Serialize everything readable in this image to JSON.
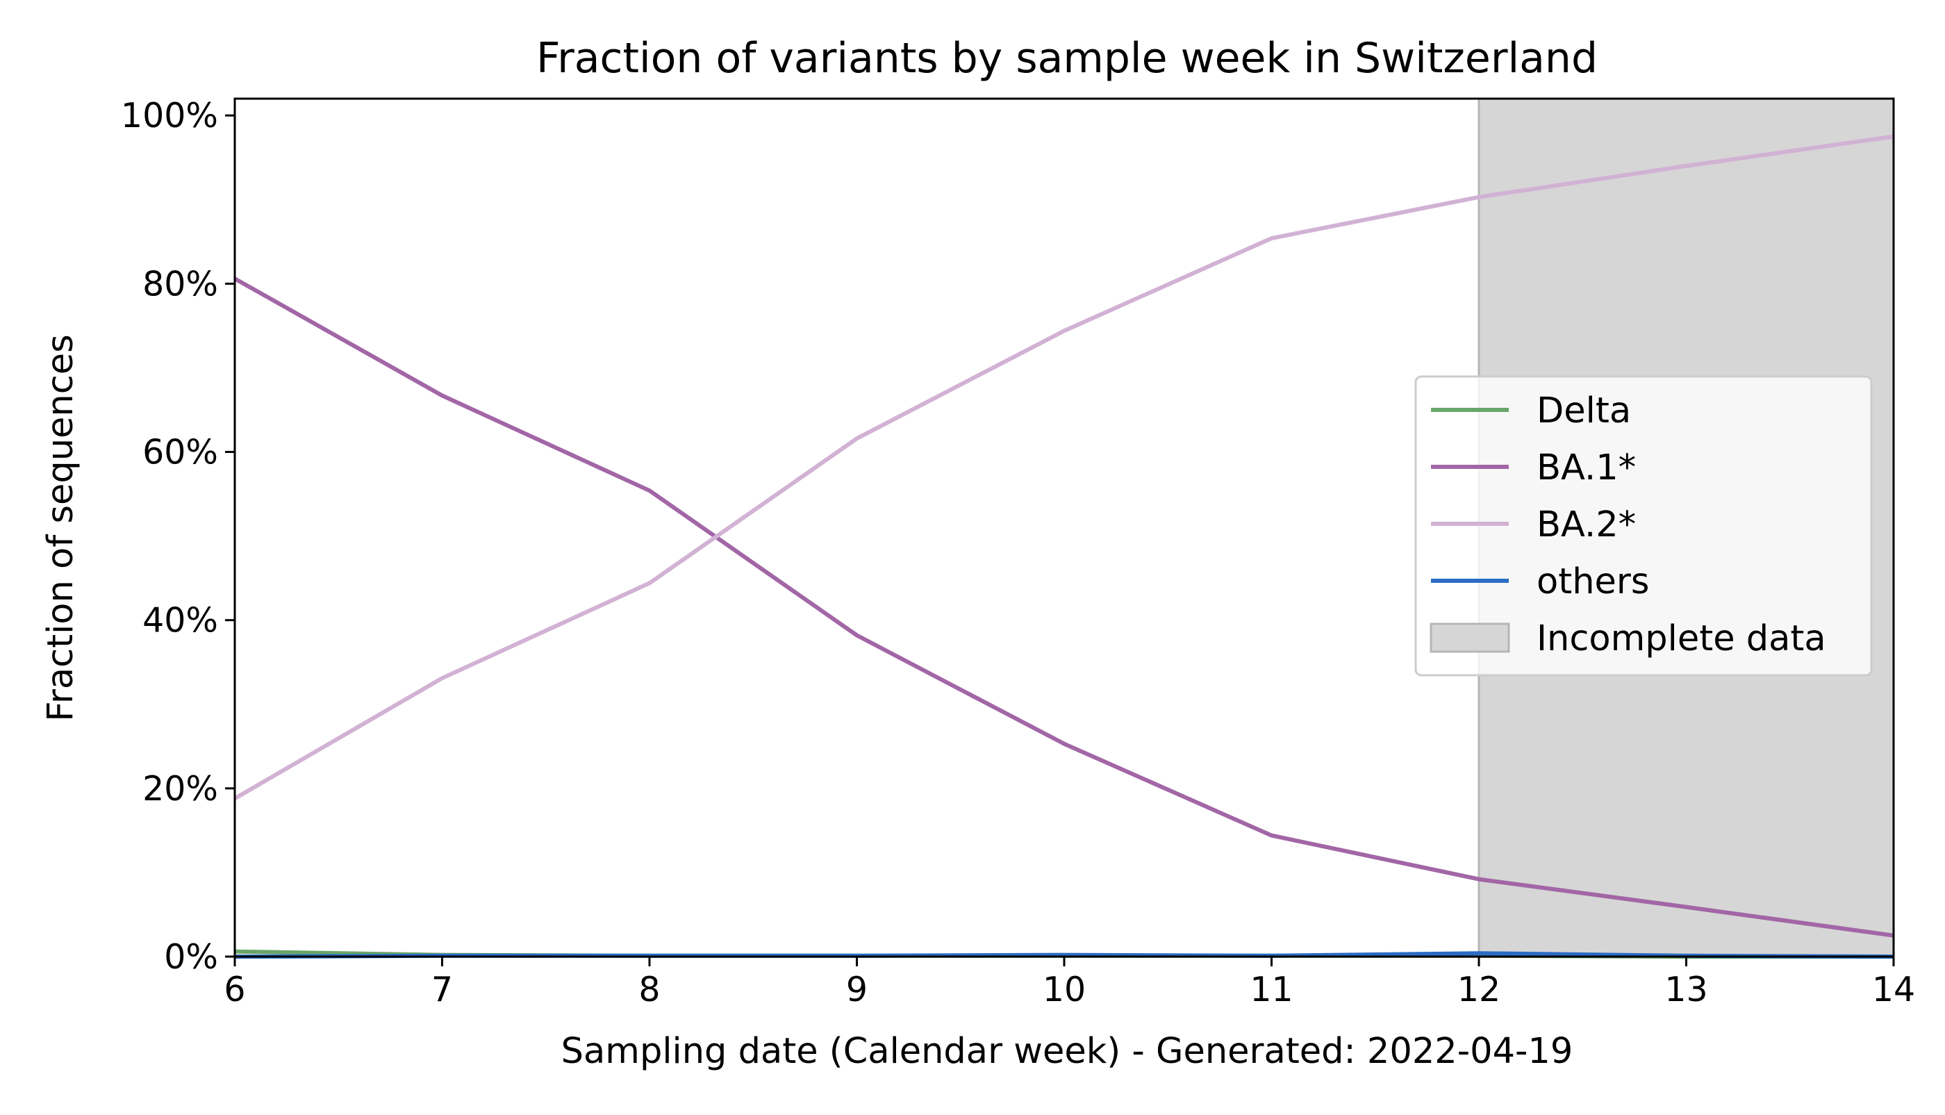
{
  "chart_data": {
    "type": "line",
    "title": "Fraction of variants by sample week in Switzerland",
    "xlabel": "Sampling date (Calendar week) - Generated: 2022-04-19",
    "ylabel": "Fraction of sequences",
    "x": [
      6,
      7,
      8,
      9,
      10,
      11,
      12,
      13,
      14
    ],
    "xlim": [
      6,
      14
    ],
    "ylim": [
      0,
      1.02
    ],
    "x_ticks": [
      {
        "value": 6,
        "label": "6"
      },
      {
        "value": 7,
        "label": "7"
      },
      {
        "value": 8,
        "label": "8"
      },
      {
        "value": 9,
        "label": "9"
      },
      {
        "value": 10,
        "label": "10"
      },
      {
        "value": 11,
        "label": "11"
      },
      {
        "value": 12,
        "label": "12"
      },
      {
        "value": 13,
        "label": "13"
      },
      {
        "value": 14,
        "label": "14"
      }
    ],
    "y_ticks": [
      {
        "value": 0,
        "label": "0%"
      },
      {
        "value": 0.2,
        "label": "20%"
      },
      {
        "value": 0.4,
        "label": "40%"
      },
      {
        "value": 0.6,
        "label": "60%"
      },
      {
        "value": 0.8,
        "label": "80%"
      },
      {
        "value": 1.0,
        "label": "100%"
      }
    ],
    "grid": false,
    "legend_position": "center-right",
    "shaded_region": {
      "label": "Incomplete data",
      "x_start": 12,
      "x_end": 14,
      "color": "#d6d6d6"
    },
    "series": [
      {
        "name": "Delta",
        "color": "#6aa56a",
        "values": [
          0.006,
          0.002,
          0.001,
          0.001,
          0.001,
          0.001,
          0.001,
          0.0,
          0.0
        ]
      },
      {
        "name": "BA.1*",
        "color": "#a266a6",
        "values": [
          0.806,
          0.667,
          0.554,
          0.382,
          0.253,
          0.144,
          0.092,
          0.059,
          0.025
        ]
      },
      {
        "name": "BA.2*",
        "color": "#d2b2d4",
        "values": [
          0.188,
          0.331,
          0.444,
          0.616,
          0.744,
          0.854,
          0.903,
          0.94,
          0.975
        ]
      },
      {
        "name": "others",
        "color": "#2b6cc4",
        "values": [
          0.0,
          0.001,
          0.001,
          0.001,
          0.002,
          0.001,
          0.004,
          0.001,
          0.0
        ]
      }
    ]
  }
}
